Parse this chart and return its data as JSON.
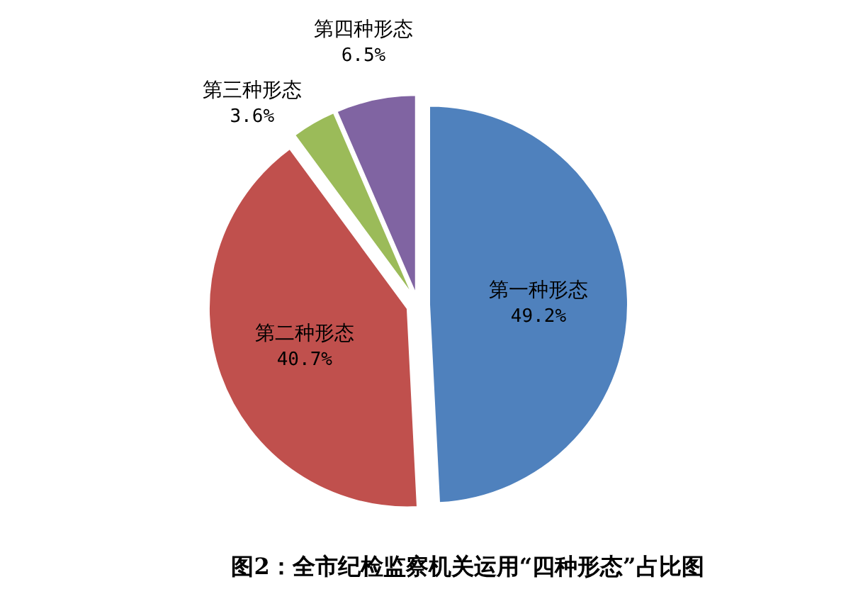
{
  "chart_data": {
    "type": "pie",
    "title": "图2：全市纪检监察机关运用“四种形态”占比图",
    "categories": [
      "第一种形态",
      "第二种形态",
      "第三种形态",
      "第四种形态"
    ],
    "values": [
      49.2,
      40.7,
      3.6,
      6.5
    ],
    "colors": [
      "#4f81bd",
      "#c0504d",
      "#9bbb59",
      "#8064a2"
    ],
    "value_labels": [
      "49.2%",
      "40.7%",
      "3.6%",
      "6.5%"
    ]
  }
}
